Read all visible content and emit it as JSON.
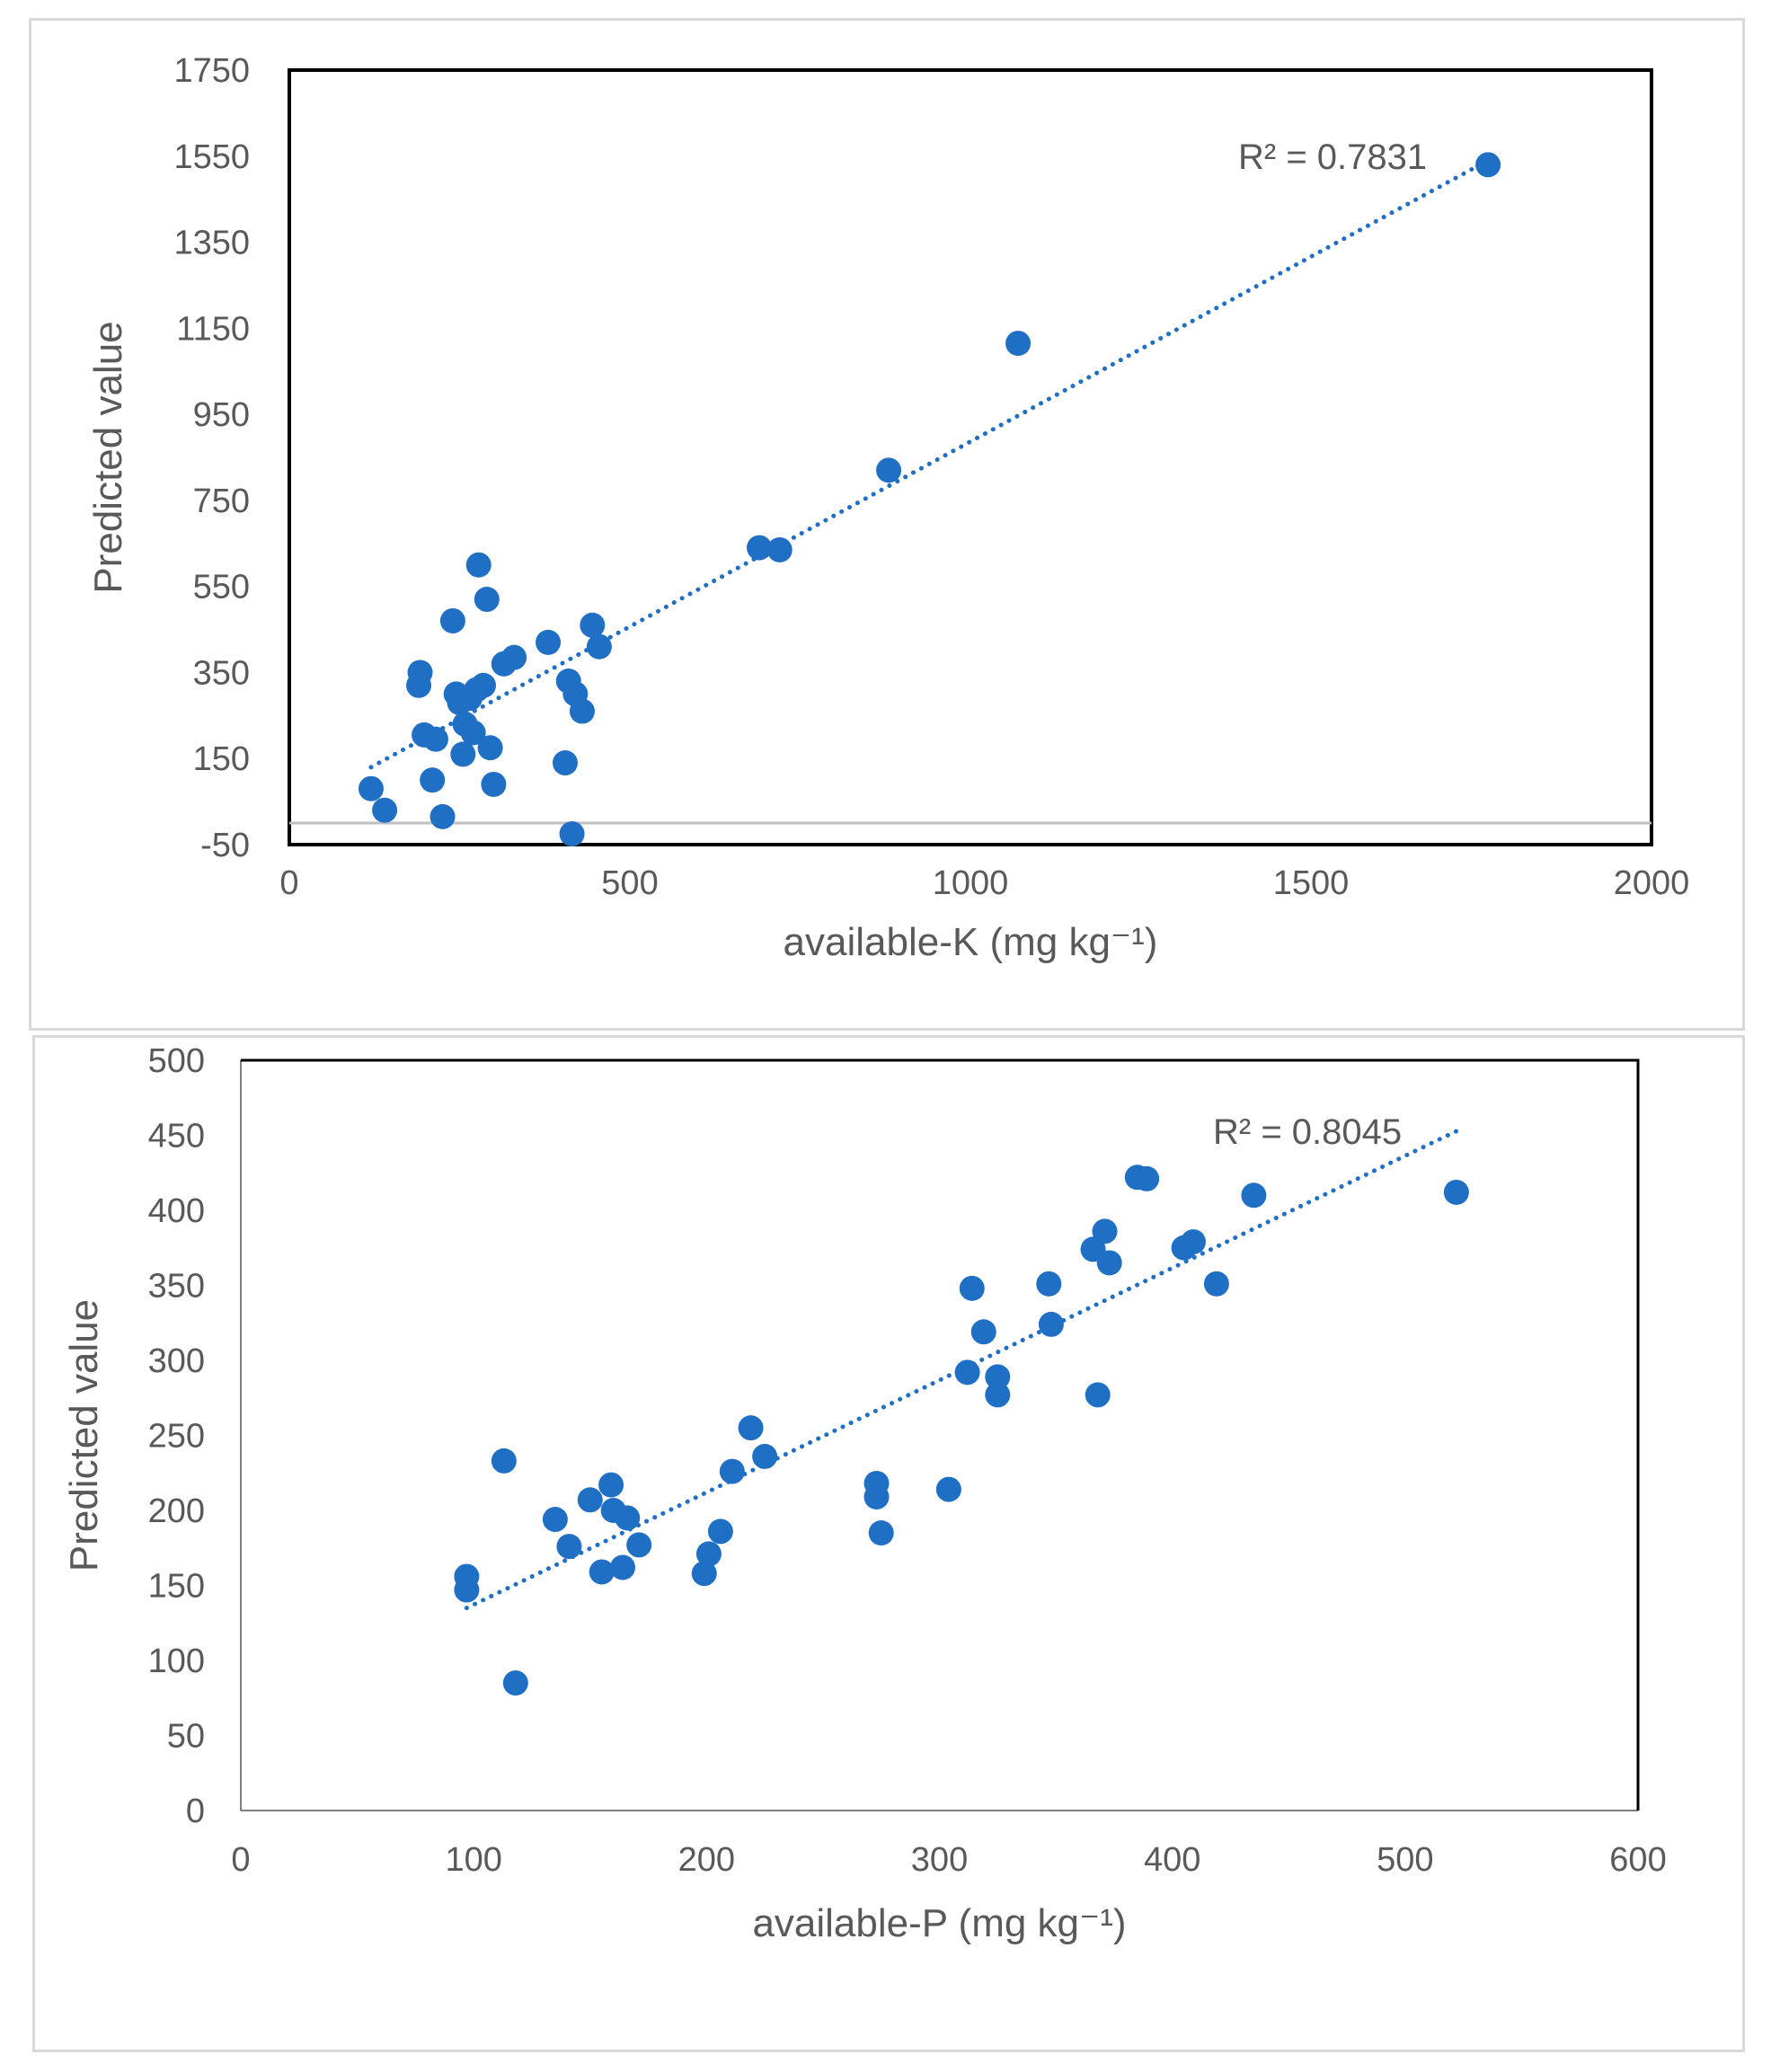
{
  "chart_data": [
    {
      "type": "scatter",
      "title": "",
      "xlabel": "available-K (mg kg⁻¹)",
      "ylabel": "Predicted value",
      "xlim": [
        0,
        2000
      ],
      "ylim": [
        -50,
        1750
      ],
      "xticks": [
        0,
        500,
        1000,
        1500,
        2000
      ],
      "yticks": [
        -50,
        150,
        350,
        550,
        750,
        950,
        1150,
        1350,
        1550,
        1750
      ],
      "xtick_labels": [
        "0",
        "500",
        "1000",
        "1500",
        "2000"
      ],
      "ytick_labels": [
        "-50",
        "150",
        "350",
        "550",
        "750",
        "950",
        "1150",
        "1350",
        "1550",
        "1750"
      ],
      "zero_line": true,
      "r2_label": "R² = 0.7831",
      "marker_color": "#1f6fc5",
      "trendline": {
        "x": [
          120,
          1760
        ],
        "y": [
          130,
          1540
        ],
        "style": "dotted"
      },
      "series": [
        {
          "name": "available-K",
          "x": [
            120,
            140,
            190,
            192,
            198,
            210,
            215,
            225,
            240,
            245,
            250,
            255,
            258,
            265,
            270,
            275,
            278,
            285,
            290,
            295,
            300,
            315,
            330,
            380,
            410,
            405,
            415,
            420,
            430,
            445,
            455,
            690,
            720,
            880,
            1070,
            1760
          ],
          "y": [
            80,
            30,
            320,
            350,
            205,
            100,
            195,
            15,
            470,
            300,
            280,
            160,
            230,
            290,
            210,
            310,
            600,
            320,
            520,
            175,
            90,
            370,
            385,
            420,
            330,
            140,
            -25,
            300,
            260,
            460,
            410,
            640,
            635,
            820,
            1115,
            1530
          ]
        }
      ]
    },
    {
      "type": "scatter",
      "title": "",
      "xlabel": "available-P (mg kg⁻¹)",
      "ylabel": "Predicted value",
      "xlim": [
        0,
        600
      ],
      "ylim": [
        0,
        500
      ],
      "xticks": [
        0,
        100,
        200,
        300,
        400,
        500,
        600
      ],
      "yticks": [
        0,
        50,
        100,
        150,
        200,
        250,
        300,
        350,
        400,
        450,
        500
      ],
      "xtick_labels": [
        "0",
        "100",
        "200",
        "300",
        "400",
        "500",
        "600"
      ],
      "ytick_labels": [
        "0",
        "50",
        "100",
        "150",
        "200",
        "250",
        "300",
        "350",
        "400",
        "450",
        "500"
      ],
      "zero_line": false,
      "r2_label": "R² = 0.8045",
      "marker_color": "#1f6fc5",
      "trendline": {
        "x": [
          97,
          525
        ],
        "y": [
          135,
          455
        ],
        "style": "dotted"
      },
      "series": [
        {
          "name": "available-P",
          "x": [
            97,
            97,
            113,
            118,
            135,
            141,
            150,
            155,
            159,
            160,
            164,
            166,
            171,
            199,
            201,
            206,
            211,
            219,
            225,
            273,
            273,
            275,
            304,
            312,
            314,
            319,
            325,
            325,
            347,
            348,
            366,
            368,
            371,
            373,
            385,
            389,
            405,
            409,
            419,
            435,
            522
          ],
          "y": [
            147,
            156,
            233,
            85,
            194,
            176,
            207,
            159,
            217,
            200,
            162,
            195,
            177,
            158,
            171,
            186,
            226,
            255,
            236,
            218,
            209,
            185,
            214,
            292,
            348,
            319,
            289,
            277,
            351,
            324,
            374,
            277,
            386,
            365,
            422,
            421,
            375,
            379,
            351,
            410,
            412
          ]
        }
      ]
    }
  ]
}
